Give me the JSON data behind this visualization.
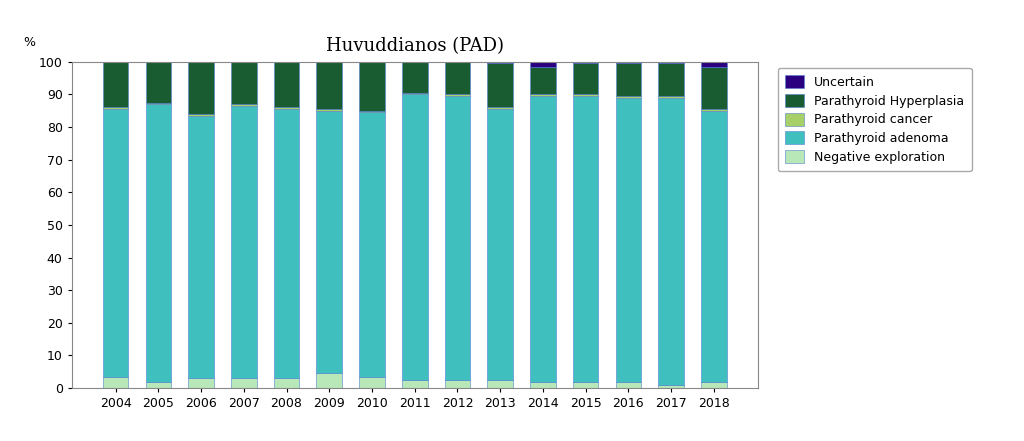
{
  "title": "Huvuddianos (PAD)",
  "years": [
    2004,
    2005,
    2006,
    2007,
    2008,
    2009,
    2010,
    2011,
    2012,
    2013,
    2014,
    2015,
    2016,
    2017,
    2018
  ],
  "categories": [
    "Negative exploration",
    "Parathyroid adenoma",
    "Parathyroid cancer",
    "Parathyroid Hyperplasia",
    "Uncertain"
  ],
  "colors": [
    "#b8e8b8",
    "#40bfbf",
    "#a8d068",
    "#1a5c32",
    "#2a0080"
  ],
  "data": {
    "Negative exploration": [
      3.5,
      2.0,
      3.0,
      3.0,
      3.0,
      4.5,
      3.5,
      2.5,
      2.5,
      2.5,
      2.0,
      2.0,
      2.0,
      1.0,
      2.0
    ],
    "Parathyroid adenoma": [
      82.0,
      85.0,
      80.5,
      83.5,
      82.5,
      80.5,
      81.0,
      87.5,
      87.0,
      83.0,
      87.5,
      87.5,
      87.0,
      88.0,
      83.0
    ],
    "Parathyroid cancer": [
      0.5,
      0.5,
      0.5,
      0.5,
      0.5,
      0.5,
      0.5,
      0.5,
      0.5,
      0.5,
      0.5,
      0.5,
      0.5,
      0.5,
      0.5
    ],
    "Parathyroid Hyperplasia": [
      14.0,
      12.5,
      16.0,
      13.0,
      14.0,
      14.5,
      15.0,
      9.5,
      10.0,
      13.5,
      8.5,
      9.5,
      10.0,
      10.0,
      13.0
    ],
    "Uncertain": [
      0.0,
      0.0,
      0.0,
      0.0,
      0.0,
      0.0,
      0.0,
      0.0,
      0.0,
      0.5,
      1.5,
      0.5,
      0.5,
      0.5,
      1.5
    ]
  },
  "percent_label": "%",
  "ylim": [
    0,
    100
  ],
  "yticks": [
    0,
    10,
    20,
    30,
    40,
    50,
    60,
    70,
    80,
    90,
    100
  ],
  "background_color": "#ffffff",
  "bar_edge_color": "#5080d0",
  "bar_width": 0.6,
  "title_fontsize": 13,
  "tick_fontsize": 9,
  "legend_fontsize": 9
}
